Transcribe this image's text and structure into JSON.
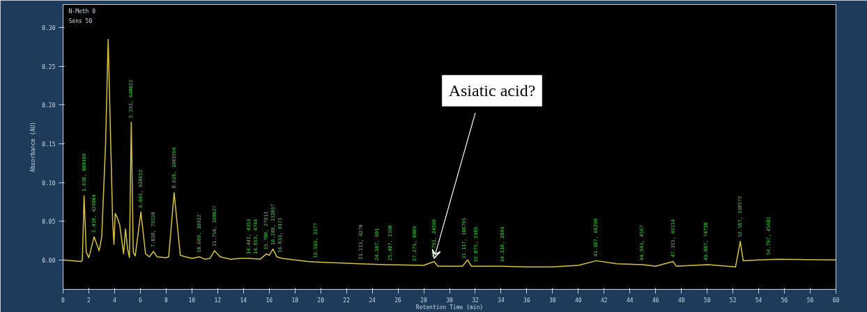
{
  "chart_data": {
    "type": "line",
    "xlabel": "Retention Time (min)",
    "ylabel": "Absorbance (AU)",
    "xlim": [
      0,
      60
    ],
    "xticks": [
      0,
      2,
      4,
      6,
      8,
      10,
      12,
      14,
      16,
      18,
      20,
      22,
      24,
      26,
      28,
      30,
      32,
      34,
      36,
      38,
      40,
      42,
      44,
      46,
      48,
      50,
      52,
      54,
      56,
      58,
      60
    ],
    "ylim": [
      -0.038,
      0.33
    ],
    "yticks": [
      {
        "value": 0,
        "label": "0.00"
      },
      0.05,
      {
        "value": 0.1,
        "label": "0.10"
      },
      0.15,
      {
        "value": 0.2,
        "label": "0.20"
      },
      0.25,
      {
        "value": 0.3,
        "label": "0.30"
      }
    ],
    "grid": false,
    "x": [
      0,
      1.4,
      1.5,
      1.63,
      1.8,
      2.0,
      2.41,
      2.8,
      3.0,
      3.3,
      3.5,
      3.7,
      3.85,
      3.95,
      4.05,
      4.2,
      4.4,
      4.6,
      4.7,
      4.85,
      5.0,
      5.15,
      5.293,
      5.45,
      5.6,
      6.04,
      6.4,
      6.7,
      7.02,
      7.3,
      8.0,
      8.2,
      8.62,
      9.1,
      9.5,
      10.0,
      10.6,
      11.0,
      11.4,
      11.75,
      12.2,
      13.0,
      13.8,
      14.5,
      15.3,
      15.8,
      16.0,
      16.29,
      16.6,
      17,
      19,
      20,
      23,
      25,
      28,
      28.8,
      29.1,
      31,
      31.4,
      31.7,
      34,
      36,
      38,
      40,
      41.4,
      43,
      45,
      46,
      47.35,
      47.6,
      50,
      52.2,
      52.57,
      52.8,
      54,
      55.5,
      60
    ],
    "series": [
      {
        "color": "#d8c43c",
        "values": [
          0.0,
          -0.002,
          0.0,
          0.083,
          0.01,
          0.003,
          0.03,
          0.012,
          0.03,
          0.15,
          0.285,
          0.15,
          0.05,
          0.02,
          0.06,
          0.055,
          0.045,
          0.02,
          0.008,
          0.04,
          0.015,
          0.003,
          0.178,
          0.01,
          0.005,
          0.062,
          0.008,
          0.004,
          0.011,
          0.004,
          0.003,
          0.004,
          0.087,
          0.006,
          0.004,
          0.002,
          0.004,
          0.001,
          0.002,
          0.012,
          0.004,
          0.001,
          0.002,
          0.002,
          0.001,
          0.008,
          0.006,
          0.014,
          0.004,
          0.002,
          -0.002,
          -0.003,
          -0.005,
          -0.006,
          -0.007,
          -0.002,
          -0.008,
          -0.008,
          0.0,
          -0.008,
          -0.008,
          -0.009,
          -0.009,
          -0.007,
          -0.001,
          -0.005,
          -0.006,
          -0.008,
          -0.002,
          -0.008,
          -0.006,
          -0.009,
          0.024,
          -0.001,
          0.0,
          0.001,
          0.0
        ]
      }
    ],
    "annotations": [
      "N-Meth 0",
      "Sens 50",
      {
        "text": "Asiatic acid?",
        "x": 28.8,
        "y": -0.002
      },
      {
        "text": "1.630, 800109",
        "x": 1.63,
        "y": 0.083
      },
      {
        "text": "2.410, 424864",
        "x": 2.41,
        "y": 0.03
      },
      {
        "text": "5.293, 640022",
        "x": 5.293,
        "y": 0.178
      },
      {
        "text": "6.041, 620652",
        "x": 6.04,
        "y": 0.062
      },
      {
        "text": "7.020, 79538",
        "x": 7.02,
        "y": 0.011
      },
      {
        "text": "8.620, 1083564",
        "x": 8.62,
        "y": 0.087
      },
      {
        "text": "10.609, 10922",
        "x": 10.6,
        "y": 0.004
      },
      {
        "text": "11.750, 100627",
        "x": 11.75,
        "y": 0.012
      },
      {
        "text": "14.441, 4353",
        "x": 14.441,
        "y": 0.002
      },
      {
        "text": "14.953, 4744",
        "x": 14.953,
        "y": 0.002
      },
      {
        "text": "15.780, 27811",
        "x": 15.78,
        "y": 0.008
      },
      {
        "text": "16.288, 132037",
        "x": 16.29,
        "y": 0.014
      },
      {
        "text": "16.833, 8171",
        "x": 16.833,
        "y": 0.004
      },
      {
        "text": "19.593, 2377",
        "x": 19.593,
        "y": -0.003
      },
      {
        "text": "23.113, 8270",
        "x": 23.113,
        "y": -0.005
      },
      {
        "text": "24.387, 801",
        "x": 24.387,
        "y": -0.006
      },
      {
        "text": "25.407, 1390",
        "x": 25.407,
        "y": -0.006
      },
      {
        "text": "27.273, 8809",
        "x": 27.273,
        "y": -0.007
      },
      {
        "text": "28.793, 24190",
        "x": 28.793,
        "y": -0.002
      },
      {
        "text": "31.117, 106795",
        "x": 31.117,
        "y": -0.004
      },
      {
        "text": "32.075, 1985",
        "x": 32.075,
        "y": -0.008
      },
      {
        "text": "34.138, 2849",
        "x": 34.138,
        "y": -0.008
      },
      {
        "text": "41.367, 66296",
        "x": 41.367,
        "y": -0.001
      },
      {
        "text": "44.943, 4557",
        "x": 44.943,
        "y": -0.006
      },
      {
        "text": "47.353, 45114",
        "x": 47.353,
        "y": -0.002
      },
      {
        "text": "49.887, 74720",
        "x": 49.887,
        "y": -0.006
      },
      {
        "text": "52.567, 190572",
        "x": 52.567,
        "y": 0.024
      },
      {
        "text": "54.797, 45601",
        "x": 54.797,
        "y": 0.001
      }
    ]
  }
}
